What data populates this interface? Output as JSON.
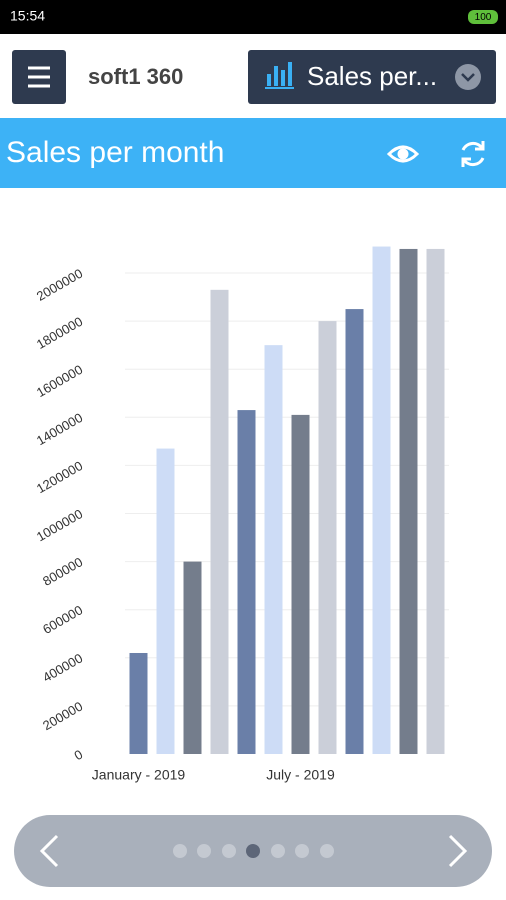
{
  "status": {
    "time": "15:54",
    "battery": "100"
  },
  "header": {
    "logo": "soft1 360",
    "dropdown": "Sales per..."
  },
  "toolbar": {
    "title": "Sales per month"
  },
  "chart_data": {
    "type": "bar",
    "categories": [
      "January - 2019",
      null,
      null,
      null,
      null,
      null,
      "July - 2019",
      null,
      null,
      null,
      null,
      null
    ],
    "values": [
      420000,
      1270000,
      800000,
      1930000,
      1430000,
      1700000,
      1410000,
      1800000,
      1850000,
      2110000,
      2100000,
      2100000
    ],
    "colors": [
      "#6a7fa8",
      "#cddcf6",
      "#747d8c",
      "#cbcfd9",
      "#6a7fa8",
      "#cddcf6",
      "#747d8c",
      "#cbcfd9",
      "#6a7fa8",
      "#cddcf6",
      "#747d8c",
      "#cbcfd9"
    ],
    "ylim": [
      0,
      2200000
    ],
    "yticks": [
      0,
      200000,
      400000,
      600000,
      800000,
      1000000,
      1200000,
      1400000,
      1600000,
      1800000,
      2000000
    ],
    "grid": true
  }
}
